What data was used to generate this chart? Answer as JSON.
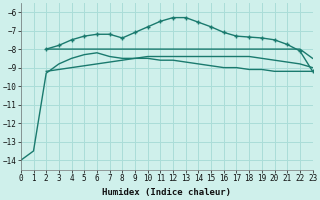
{
  "xlabel": "Humidex (Indice chaleur)",
  "ylabel": "",
  "bg_color": "#cff0eb",
  "grid_color": "#aaddd8",
  "line_color": "#1a7a6e",
  "xlim": [
    0,
    23
  ],
  "ylim": [
    -14.5,
    -5.5
  ],
  "yticks": [
    -14,
    -13,
    -12,
    -11,
    -10,
    -9,
    -8,
    -7,
    -6
  ],
  "xticks": [
    0,
    1,
    2,
    3,
    4,
    5,
    6,
    7,
    8,
    9,
    10,
    11,
    12,
    13,
    14,
    15,
    16,
    17,
    18,
    19,
    20,
    21,
    22,
    23
  ],
  "series": [
    {
      "x": [
        0,
        1,
        2,
        3,
        4,
        5,
        6,
        7,
        8,
        9,
        10,
        11,
        12,
        13,
        14,
        15,
        16,
        17,
        18,
        19,
        20,
        21,
        22,
        23
      ],
      "y": [
        -14.0,
        -13.5,
        -9.3,
        -8.8,
        -8.5,
        -8.3,
        -8.2,
        -8.4,
        -8.5,
        -8.5,
        -8.5,
        -8.6,
        -8.6,
        -8.7,
        -8.8,
        -8.9,
        -9.0,
        -9.0,
        -9.1,
        -9.1,
        -9.2,
        -9.2,
        -9.2,
        -9.2
      ],
      "marker": false,
      "lw": 1.0
    },
    {
      "x": [
        2,
        3,
        4,
        5,
        6,
        7,
        8,
        9,
        10,
        11,
        12,
        13,
        14,
        15,
        16,
        17,
        18,
        19,
        20,
        21,
        22,
        23
      ],
      "y": [
        -8.0,
        -8.0,
        -8.0,
        -8.0,
        -8.0,
        -8.0,
        -8.0,
        -8.0,
        -8.0,
        -8.0,
        -8.0,
        -8.0,
        -8.0,
        -8.0,
        -8.0,
        -8.0,
        -8.0,
        -8.0,
        -8.0,
        -8.0,
        -8.0,
        -8.5
      ],
      "marker": false,
      "lw": 1.0
    },
    {
      "x": [
        2,
        3,
        4,
        5,
        6,
        7,
        8,
        9,
        10,
        11,
        12,
        13,
        14,
        15,
        16,
        17,
        18,
        19,
        20,
        21,
        22,
        23
      ],
      "y": [
        -8.0,
        -7.8,
        -7.5,
        -7.3,
        -7.2,
        -7.2,
        -7.4,
        -7.1,
        -6.8,
        -6.5,
        -6.3,
        -6.3,
        -6.55,
        -6.8,
        -7.1,
        -7.3,
        -7.35,
        -7.4,
        -7.5,
        -7.75,
        -8.1,
        -9.2
      ],
      "marker": true,
      "lw": 1.0
    },
    {
      "x": [
        2,
        3,
        4,
        5,
        6,
        7,
        8,
        9,
        10,
        11,
        12,
        13,
        14,
        15,
        16,
        17,
        18,
        19,
        20,
        21,
        22,
        23
      ],
      "y": [
        -9.2,
        -9.1,
        -9.0,
        -8.9,
        -8.8,
        -8.7,
        -8.6,
        -8.5,
        -8.4,
        -8.4,
        -8.4,
        -8.4,
        -8.4,
        -8.4,
        -8.4,
        -8.4,
        -8.4,
        -8.5,
        -8.6,
        -8.7,
        -8.8,
        -9.0
      ],
      "marker": false,
      "lw": 1.0
    }
  ]
}
